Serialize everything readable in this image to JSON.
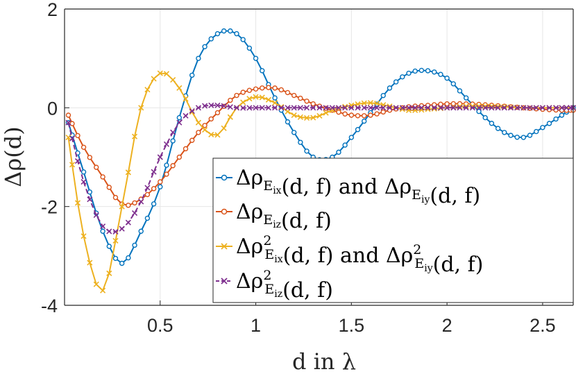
{
  "chart_data": {
    "type": "line",
    "title": "",
    "xlabel": "d in λ",
    "ylabel": "Δρ(d)",
    "xlim": [
      0,
      2.66
    ],
    "ylim": [
      -4,
      2
    ],
    "xticks": [
      0.5,
      1,
      1.5,
      2,
      2.5
    ],
    "xtick_labels": [
      "0.5",
      "1",
      "1.5",
      "2",
      "2.5"
    ],
    "yticks": [
      -4,
      -2,
      0,
      2
    ],
    "ytick_labels": [
      "-4",
      "-2",
      "0",
      "2"
    ],
    "grid": true,
    "legend_position": "bottom-right",
    "series": [
      {
        "name": "Δρ_Eix(d,f) and Δρ_Eiy(d,f)",
        "color": "#0072BD",
        "marker": "circle",
        "x": [
          0.02,
          0.1,
          0.2,
          0.3,
          0.4,
          0.5,
          0.6,
          0.7,
          0.8,
          0.9,
          1.0,
          1.1,
          1.2,
          1.3,
          1.4,
          1.5,
          1.6,
          1.7,
          1.8,
          1.9,
          2.0,
          2.1,
          2.2,
          2.3,
          2.4,
          2.5,
          2.6,
          2.66
        ],
        "y": [
          -0.3,
          -1.3,
          -2.5,
          -3.15,
          -2.5,
          -1.6,
          -0.2,
          1.0,
          1.5,
          1.5,
          1.0,
          0.2,
          -0.5,
          -1.0,
          -1.0,
          -0.6,
          -0.1,
          0.4,
          0.7,
          0.75,
          0.6,
          0.2,
          -0.2,
          -0.5,
          -0.6,
          -0.4,
          -0.15,
          0.0
        ]
      },
      {
        "name": "Δρ_Eiz(d,f)",
        "color": "#D95319",
        "marker": "circle",
        "x": [
          0.02,
          0.1,
          0.2,
          0.3,
          0.4,
          0.5,
          0.6,
          0.7,
          0.8,
          0.9,
          1.0,
          1.1,
          1.2,
          1.3,
          1.4,
          1.5,
          1.6,
          1.7,
          1.8,
          1.9,
          2.0,
          2.1,
          2.2,
          2.3,
          2.4,
          2.5,
          2.6,
          2.66
        ],
        "y": [
          -0.15,
          -0.8,
          -1.4,
          -1.95,
          -1.85,
          -1.5,
          -1.0,
          -0.5,
          -0.1,
          0.25,
          0.38,
          0.4,
          0.25,
          0.08,
          -0.05,
          -0.15,
          -0.15,
          -0.05,
          0.02,
          0.05,
          0.08,
          0.08,
          0.06,
          0.03,
          0.0,
          -0.03,
          -0.05,
          -0.05
        ]
      },
      {
        "name": "Δρ²_Eix(d,f) and Δρ²_Eiy(d,f)",
        "color": "#EDB120",
        "marker": "x",
        "x": [
          0.02,
          0.1,
          0.2,
          0.3,
          0.4,
          0.5,
          0.6,
          0.7,
          0.8,
          0.9,
          1.0,
          1.1,
          1.2,
          1.3,
          1.4,
          1.5,
          1.6,
          1.7,
          1.8,
          1.9,
          2.0,
          2.1,
          2.2,
          2.3,
          2.4,
          2.5,
          2.6,
          2.66
        ],
        "y": [
          -0.6,
          -2.6,
          -3.7,
          -2.0,
          0.0,
          0.7,
          0.4,
          -0.3,
          -0.55,
          0.0,
          0.22,
          0.1,
          -0.15,
          -0.2,
          -0.05,
          0.05,
          0.1,
          0.03,
          -0.05,
          -0.03,
          0.0,
          0.03,
          0.03,
          0.02,
          0.0,
          0.0,
          0.0,
          0.0
        ]
      },
      {
        "name": "Δρ²_Eiz(d,f)",
        "color": "#7E2F8E",
        "marker": "x",
        "x": [
          0.02,
          0.1,
          0.2,
          0.3,
          0.4,
          0.5,
          0.6,
          0.7,
          0.8,
          0.9,
          1.0,
          1.1,
          1.2,
          1.3,
          1.4,
          1.5,
          1.6,
          1.7,
          1.8,
          1.9,
          2.0,
          2.1,
          2.2,
          2.3,
          2.4,
          2.5,
          2.6,
          2.66
        ],
        "y": [
          -0.3,
          -1.5,
          -2.4,
          -2.45,
          -1.9,
          -1.0,
          -0.3,
          0.0,
          0.05,
          0.0,
          0.0,
          0.0,
          0.0,
          0.0,
          0.0,
          0.0,
          0.0,
          0.0,
          0.0,
          0.0,
          0.0,
          0.0,
          0.0,
          0.0,
          0.0,
          0.0,
          0.0,
          0.0
        ]
      }
    ],
    "legend": [
      {
        "main": "Δρ",
        "sup": "",
        "sub": "E",
        "subsub": "ix",
        "suffix": "(d, f)",
        "joiner": "and",
        "main2": "Δρ",
        "sup2": "",
        "sub2": "E",
        "subsub2": "iy",
        "suffix2": "(d, f)"
      },
      {
        "main": "Δρ",
        "sup": "",
        "sub": "E",
        "subsub": "iz",
        "suffix": "(d, f)"
      },
      {
        "main": "Δρ",
        "sup": "2",
        "sub": "E",
        "subsub": "ix",
        "suffix": "(d, f)",
        "joiner": "and",
        "main2": "Δρ",
        "sup2": "2",
        "sub2": "E",
        "subsub2": "iy",
        "suffix2": "(d, f)"
      },
      {
        "main": "Δρ",
        "sup": "2",
        "sub": "E",
        "subsub": "iz",
        "suffix": "(d, f)"
      }
    ]
  }
}
